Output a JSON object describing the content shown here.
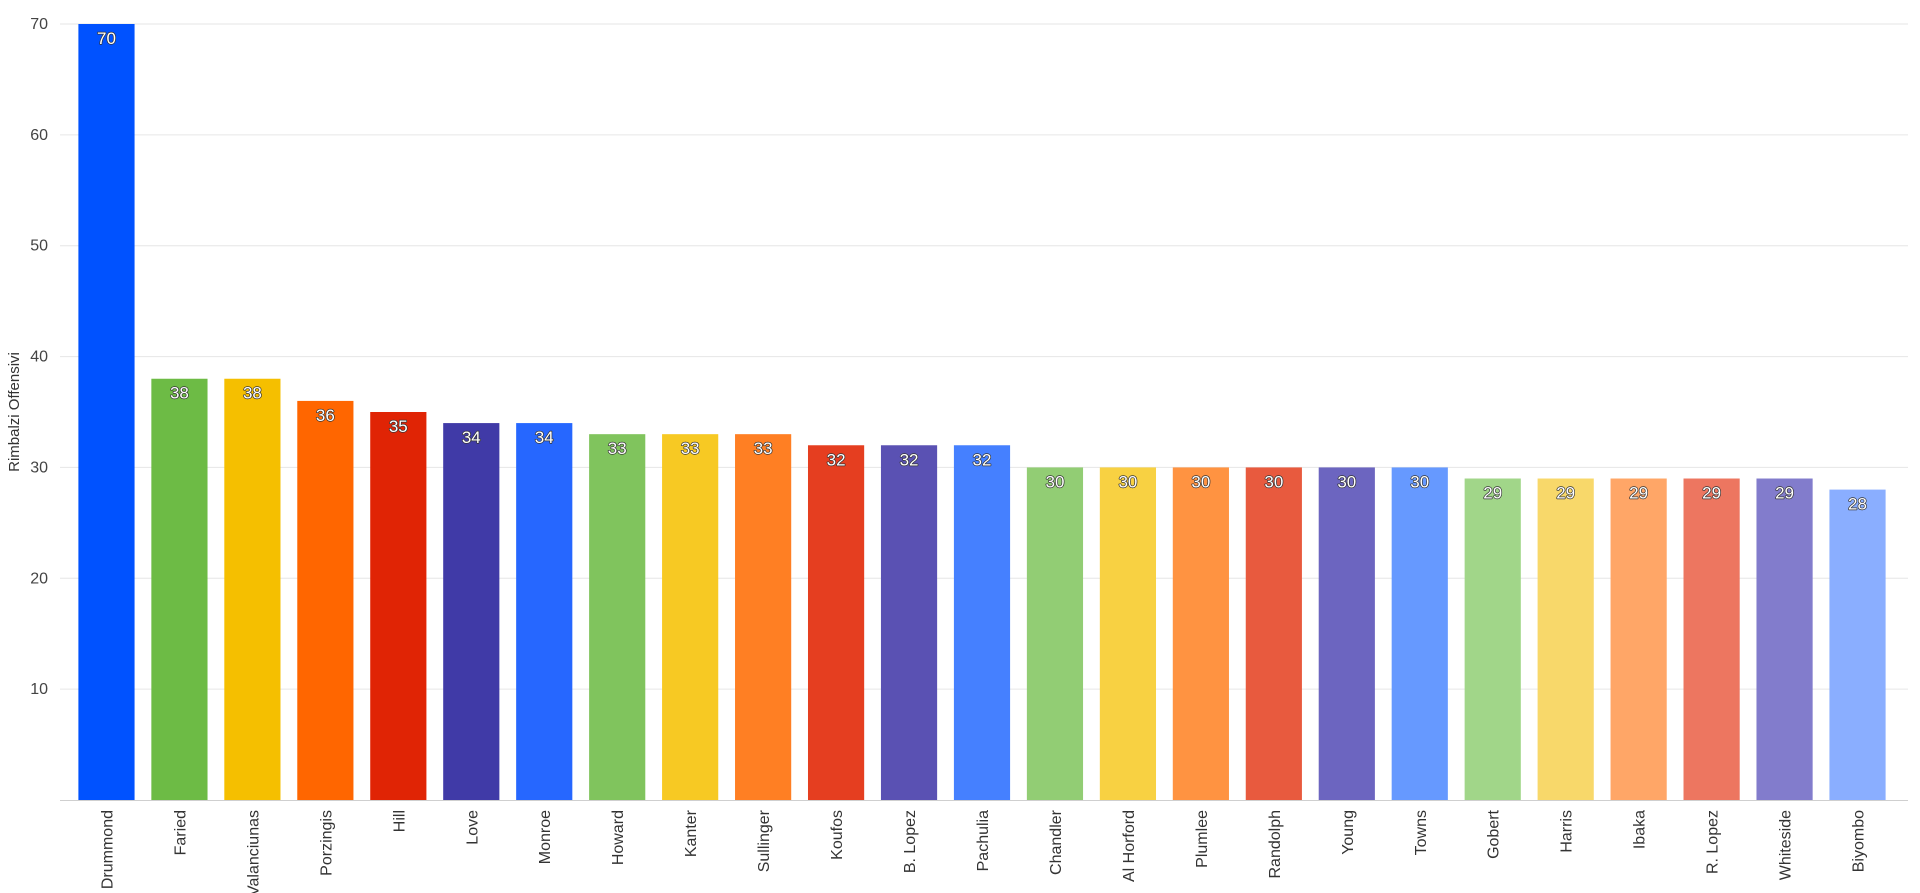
{
  "chart_data": {
    "type": "bar",
    "title": "",
    "xlabel": "",
    "ylabel": "Rimbalzi Offensivi",
    "ylim": [
      0,
      70
    ],
    "yticks": [
      10,
      20,
      30,
      40,
      50,
      60,
      70
    ],
    "grid": true,
    "legend": "none",
    "categories": [
      "Drummond",
      "Faried",
      "Valanciunas",
      "Porzingis",
      "Hill",
      "Love",
      "Monroe",
      "Howard",
      "Kanter",
      "Sullinger",
      "Koufos",
      "B. Lopez",
      "Pachulia",
      "Chandler",
      "Al Horford",
      "Plumlee",
      "Randolph",
      "Young",
      "Towns",
      "Gobert",
      "Harris",
      "Ibaka",
      "R. Lopez",
      "Whiteside",
      "Biyombo"
    ],
    "values": [
      70,
      38,
      38,
      36,
      35,
      34,
      34,
      33,
      33,
      33,
      32,
      32,
      32,
      30,
      30,
      30,
      30,
      30,
      30,
      29,
      29,
      29,
      29,
      29,
      28
    ],
    "colors": [
      "#0052ff",
      "#6dbb45",
      "#f5bf00",
      "#ff6600",
      "#e02405",
      "#403aa7",
      "#2667ff",
      "#80c45d",
      "#f7c923",
      "#ff7f23",
      "#e53e20",
      "#5a51b3",
      "#4580ff",
      "#92cd74",
      "#f8d142",
      "#ff9341",
      "#e85a3e",
      "#6c65c0",
      "#6699ff",
      "#a1d689",
      "#f8d86a",
      "#ffa667",
      "#ed7660",
      "#827ccc",
      "#8aaeff"
    ]
  }
}
